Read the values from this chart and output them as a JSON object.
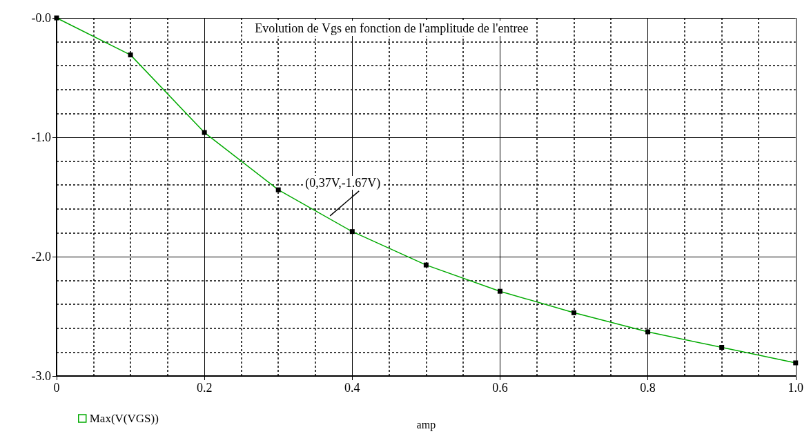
{
  "chart_data": {
    "type": "line",
    "title": "Evolution de Vgs en fonction de l'amplitude de l'entree",
    "xlabel": "amp",
    "x": [
      0,
      0.1,
      0.2,
      0.3,
      0.4,
      0.5,
      0.6,
      0.7,
      0.8,
      0.9,
      1.0
    ],
    "series": [
      {
        "name": "Max(V(VGS))",
        "color": "#00aa00",
        "values": [
          0,
          -0.31,
          -0.96,
          -1.44,
          -1.79,
          -2.07,
          -2.29,
          -2.47,
          -2.63,
          -2.76,
          -2.89
        ]
      }
    ],
    "xlim": [
      0,
      1
    ],
    "xticks": [
      0,
      0.2,
      0.4,
      0.6,
      0.8,
      {
        "value": 1,
        "label": "1.0"
      }
    ],
    "ylim": [
      -3,
      0
    ],
    "yticks": [
      {
        "value": -3,
        "label": "-3.0"
      },
      {
        "value": -2,
        "label": "-2.0"
      },
      {
        "value": -1,
        "label": "-1.0"
      },
      {
        "value": 0,
        "label": "-0.0"
      }
    ],
    "annotations": [
      {
        "text": "(0,37V,-1.67V)",
        "x": 0.37,
        "y": -1.67
      }
    ],
    "grid": true,
    "legend": "bottom left",
    "marker": "square",
    "line_style": "solid"
  }
}
